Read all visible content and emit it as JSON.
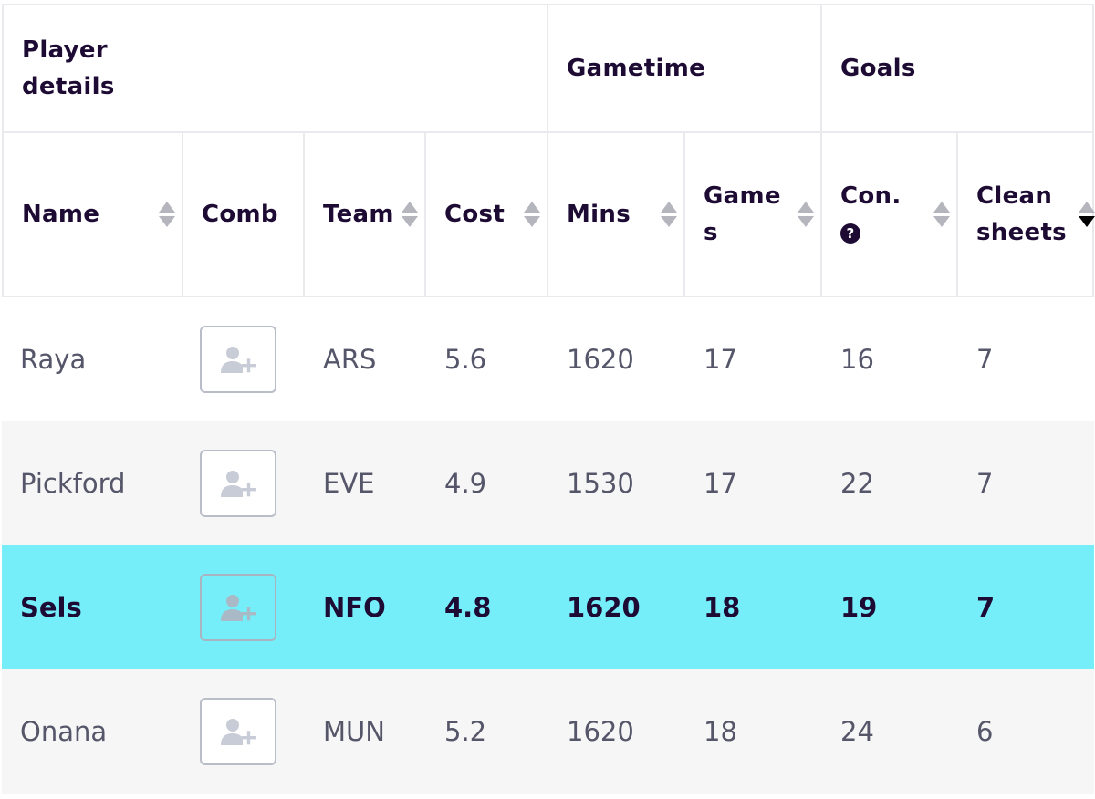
{
  "header_groups": {
    "player_details": "Player details",
    "gametime": "Gametime",
    "goals": "Goals"
  },
  "columns": {
    "name": "Name",
    "comb": "Comb",
    "team": "Team",
    "cost": "Cost",
    "mins": "Mins",
    "games": "Games",
    "con": "Con.",
    "con_help": "?",
    "clean_sheets": "Clean sheets"
  },
  "sort_state": {
    "clean_sheets": "descending"
  },
  "colors": {
    "highlight_row": "#76eefa",
    "alt_row": "#f6f6f6",
    "header_text": "#1d0b34",
    "body_text": "#56566a"
  },
  "rows": [
    {
      "name": "Raya",
      "team": "ARS",
      "cost": "5.6",
      "mins": "1620",
      "games": "17",
      "con": "16",
      "clean_sheets": "7",
      "highlighted": false
    },
    {
      "name": "Pickford",
      "team": "EVE",
      "cost": "4.9",
      "mins": "1530",
      "games": "17",
      "con": "22",
      "clean_sheets": "7",
      "highlighted": false
    },
    {
      "name": "Sels",
      "team": "NFO",
      "cost": "4.8",
      "mins": "1620",
      "games": "18",
      "con": "19",
      "clean_sheets": "7",
      "highlighted": true
    },
    {
      "name": "Onana",
      "team": "MUN",
      "cost": "5.2",
      "mins": "1620",
      "games": "18",
      "con": "24",
      "clean_sheets": "6",
      "highlighted": false
    }
  ]
}
